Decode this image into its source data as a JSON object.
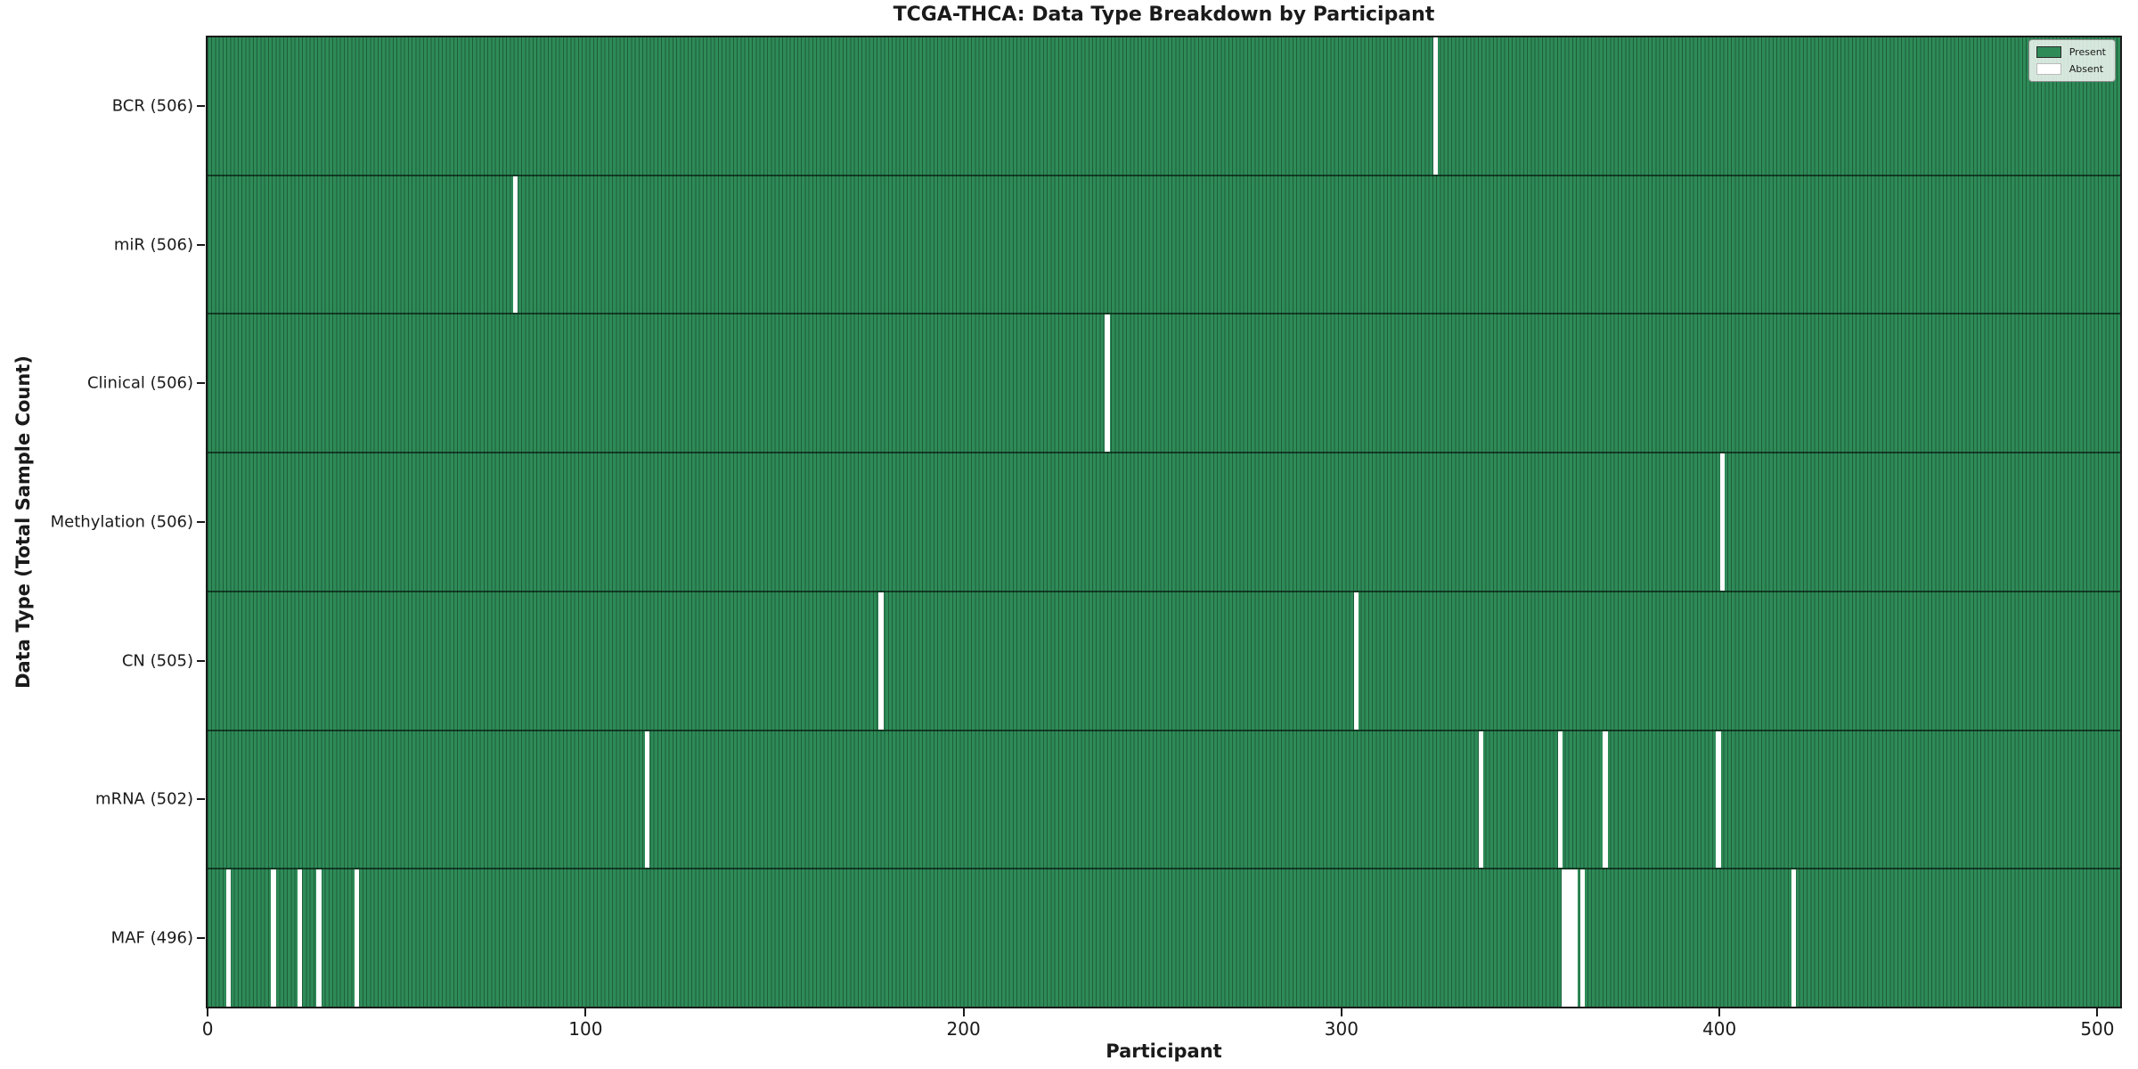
{
  "title": "TCGA-THCA: Data Type Breakdown by Participant",
  "xlabel": "Participant",
  "ylabel": "Data Type (Total Sample Count)",
  "legend": {
    "present_label": "Present",
    "absent_label": "Absent"
  },
  "colors": {
    "present": "#2E8B57",
    "bar_edge": "#1E5E3C",
    "absent": "#FFFFFF"
  },
  "chart_data": {
    "type": "heatmap",
    "title": "TCGA-THCA: Data Type Breakdown by Participant",
    "xlabel": "Participant",
    "ylabel": "Data Type (Total Sample Count)",
    "legend_entries": [
      "Present",
      "Absent"
    ],
    "legend_position": "upper right",
    "n_participants": 507,
    "x_range": [
      0,
      506
    ],
    "x_ticks": [
      0,
      100,
      200,
      300,
      400,
      500
    ],
    "rows": [
      {
        "id": "bcr",
        "label": "BCR (506)",
        "data_type": "BCR",
        "total_present": 506,
        "absent_indices": [
          325
        ]
      },
      {
        "id": "mir",
        "label": "miR (506)",
        "data_type": "miR",
        "total_present": 506,
        "absent_indices": [
          81
        ]
      },
      {
        "id": "clinical",
        "label": "Clinical (506)",
        "data_type": "Clinical",
        "total_present": 506,
        "absent_indices": [
          238
        ]
      },
      {
        "id": "methylation",
        "label": "Methylation (506)",
        "data_type": "Methylation",
        "total_present": 506,
        "absent_indices": [
          401
        ]
      },
      {
        "id": "cn",
        "label": "CN (505)",
        "data_type": "CN",
        "total_present": 505,
        "absent_indices": [
          178,
          304
        ]
      },
      {
        "id": "mrna",
        "label": "mRNA (502)",
        "data_type": "mRNA",
        "total_present": 502,
        "absent_indices": [
          116,
          337,
          358,
          370,
          400
        ]
      },
      {
        "id": "maf",
        "label": "MAF (496)",
        "data_type": "MAF",
        "total_present": 496,
        "absent_indices": [
          5,
          17,
          24,
          29,
          39,
          359,
          360,
          361,
          362,
          364,
          420
        ]
      }
    ]
  }
}
